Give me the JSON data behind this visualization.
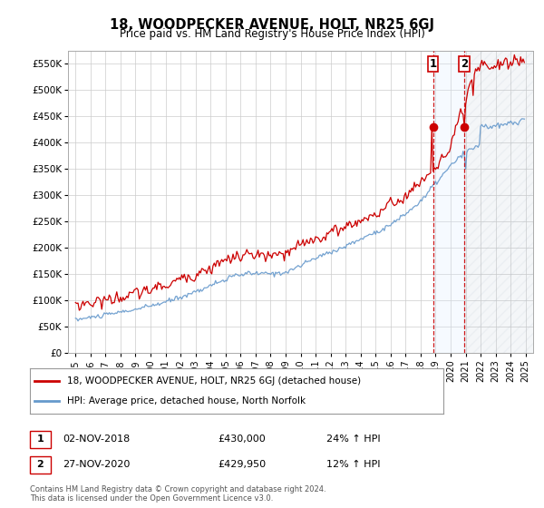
{
  "title": "18, WOODPECKER AVENUE, HOLT, NR25 6GJ",
  "subtitle": "Price paid vs. HM Land Registry's House Price Index (HPI)",
  "ylim": [
    0,
    575000
  ],
  "yticks": [
    0,
    50000,
    100000,
    150000,
    200000,
    250000,
    300000,
    350000,
    400000,
    450000,
    500000,
    550000
  ],
  "ytick_labels": [
    "£0",
    "£50K",
    "£100K",
    "£150K",
    "£200K",
    "£250K",
    "£300K",
    "£350K",
    "£400K",
    "£450K",
    "£500K",
    "£550K"
  ],
  "legend_label_red": "18, WOODPECKER AVENUE, HOLT, NR25 6GJ (detached house)",
  "legend_label_blue": "HPI: Average price, detached house, North Norfolk",
  "red_color": "#cc0000",
  "blue_color": "#6699cc",
  "sale1_date": "02-NOV-2018",
  "sale1_price": "£430,000",
  "sale1_hpi": "24% ↑ HPI",
  "sale2_date": "27-NOV-2020",
  "sale2_price": "£429,950",
  "sale2_hpi": "12% ↑ HPI",
  "footer": "Contains HM Land Registry data © Crown copyright and database right 2024.\nThis data is licensed under the Open Government Licence v3.0.",
  "background_color": "#ffffff",
  "grid_color": "#cccccc",
  "sale1_x": 2018.833,
  "sale2_x": 2020.917,
  "sale1_y": 430000,
  "sale2_y": 429950,
  "shade_color": "#ddeeff",
  "xlim_left": 1994.5,
  "xlim_right": 2025.5
}
